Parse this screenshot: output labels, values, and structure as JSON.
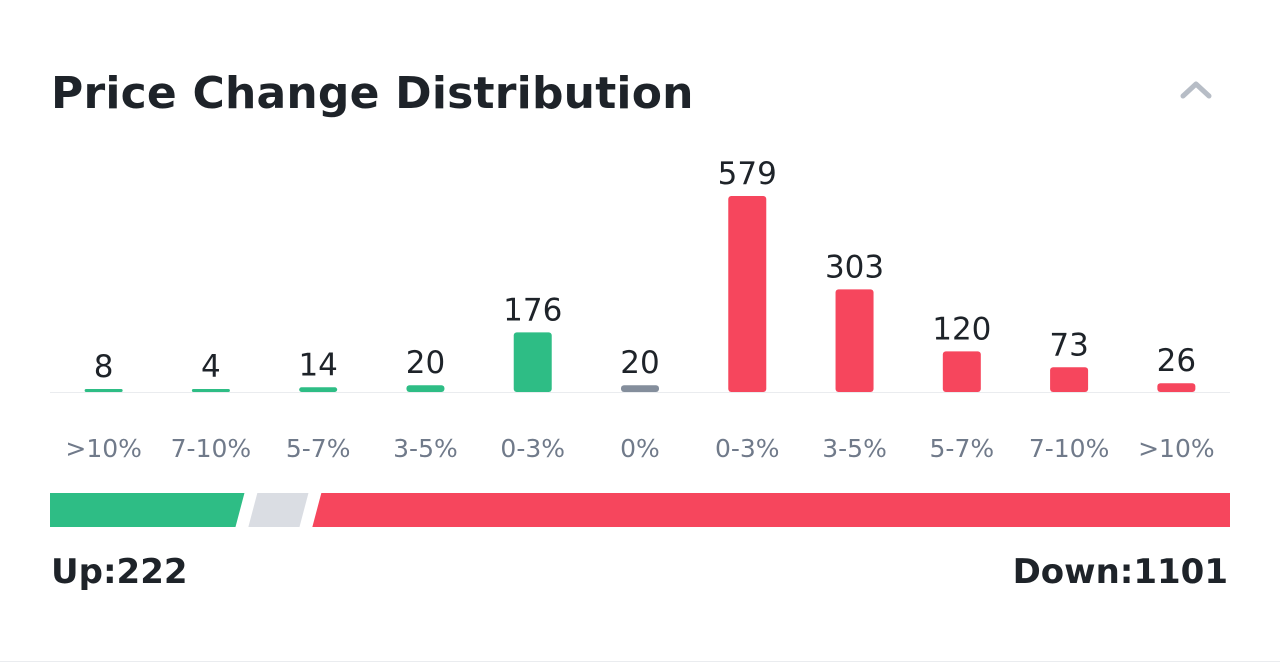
{
  "header": {
    "title": "Price Change Distribution",
    "collapse_icon": "chevron-up-icon"
  },
  "colors": {
    "up": "#2ebd85",
    "down": "#f6465d",
    "flat": "#848e9c",
    "neutral_segment": "#dadde3",
    "text": "#1e2329",
    "muted_text": "#707a8a"
  },
  "chart_data": {
    "type": "bar",
    "title": "Price Change Distribution",
    "xlabel": "",
    "ylabel": "",
    "ylim": [
      0,
      579
    ],
    "grid": false,
    "legend": "none",
    "categories": [
      ">10%",
      "7-10%",
      "5-7%",
      "3-5%",
      "0-3%",
      "0%",
      "0-3%",
      "3-5%",
      "5-7%",
      "7-10%",
      ">10%"
    ],
    "values": [
      8,
      4,
      14,
      20,
      176,
      20,
      579,
      303,
      120,
      73,
      26
    ],
    "directions": [
      "up",
      "up",
      "up",
      "up",
      "up",
      "flat",
      "down",
      "down",
      "down",
      "down",
      "down"
    ]
  },
  "summary": {
    "up_label": "Up:222",
    "down_label": "Down:1101",
    "up_count": 222,
    "flat_count": 20,
    "down_count": 1101
  }
}
